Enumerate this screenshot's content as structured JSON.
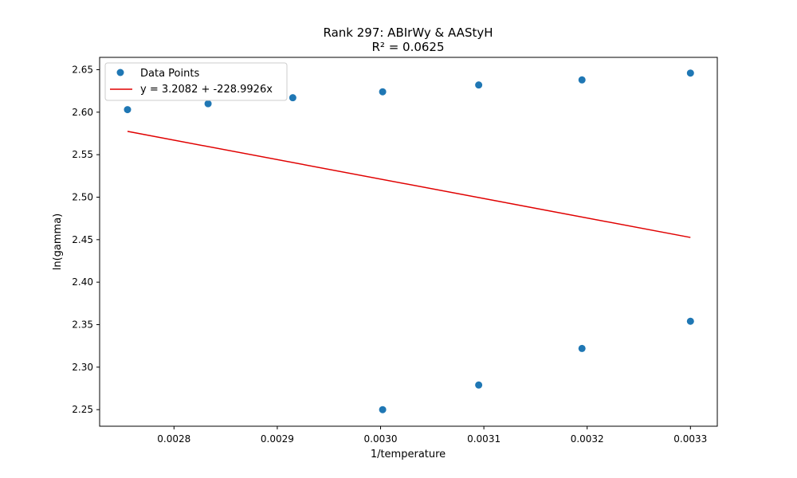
{
  "chart_data": {
    "type": "scatter",
    "title": "Rank 297: ABIrWy & AAStyH",
    "subtitle": "R² = 0.0625",
    "xlabel": "1/temperature",
    "ylabel": "ln(gamma)",
    "xlim": [
      0.002728,
      0.003326
    ],
    "ylim": [
      2.2305,
      2.6645
    ],
    "xticks": [
      0.0028,
      0.0029,
      0.003,
      0.0031,
      0.0032,
      0.0033
    ],
    "xtick_labels": [
      "0.0028",
      "0.0029",
      "0.0030",
      "0.0031",
      "0.0032",
      "0.0033"
    ],
    "yticks": [
      2.25,
      2.3,
      2.35,
      2.4,
      2.45,
      2.5,
      2.55,
      2.6,
      2.65
    ],
    "ytick_labels": [
      "2.25",
      "2.30",
      "2.35",
      "2.40",
      "2.45",
      "2.50",
      "2.55",
      "2.60",
      "2.65"
    ],
    "grid": false,
    "legend_position": "top-left",
    "series": [
      {
        "name": "Data Points",
        "kind": "scatter",
        "color": "#1f77b4",
        "x": [
          0.002755,
          0.002833,
          0.002915,
          0.003002,
          0.003095,
          0.003195,
          0.0033,
          0.003002,
          0.003095,
          0.003195,
          0.0033
        ],
        "y": [
          2.603,
          2.61,
          2.617,
          2.624,
          2.632,
          2.638,
          2.646,
          2.25,
          2.279,
          2.322,
          2.354
        ]
      },
      {
        "name": "y = 3.2082 + -228.9926x",
        "kind": "line",
        "color": "#e00000",
        "x": [
          0.002755,
          0.0033
        ],
        "y": [
          2.5774,
          2.4526
        ]
      }
    ]
  }
}
